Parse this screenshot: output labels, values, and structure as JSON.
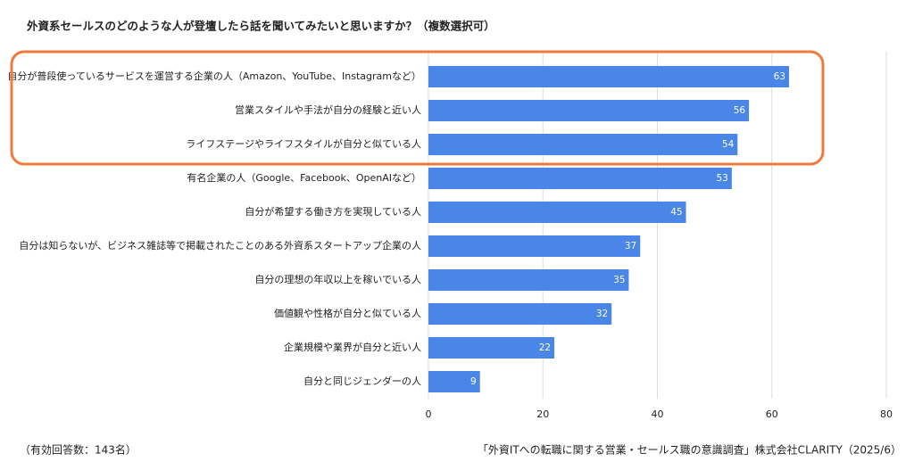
{
  "chart_data": {
    "type": "bar",
    "orientation": "horizontal",
    "title": "外資系セールスのどのような人が登壇したら話を聞いてみたいと思いますか？（複数選択可）",
    "categories": [
      "自分が普段使っているサービスを運営する企業の人（Amazon、YouTube、Instagramなど）",
      "営業スタイルや手法が自分の経験と近い人",
      "ライフステージやライフスタイルが自分と似ている人",
      "有名企業の人（Google、Facebook、OpenAIなど）",
      "自分が希望する働き方を実現している人",
      "自分は知らないが、ビジネス雑誌等で掲載されたことのある外資系スタートアップ企業の人",
      "自分の理想の年収以上を稼いでいる人",
      "価値観や性格が自分と似ている人",
      "企業規模や業界が自分と近い人",
      "自分と同じジェンダーの人"
    ],
    "values": [
      63,
      56,
      54,
      53,
      45,
      37,
      35,
      32,
      22,
      9
    ],
    "color": "#4a86e8",
    "xlim": [
      0,
      80
    ],
    "xticks": [
      0,
      20,
      40,
      60,
      80
    ],
    "grid": true,
    "footnote": "（有効回答数：143名）",
    "source": "「外資ITへの転職に関する営業・セールス職の意識調査」株式会社CLARITY（2025/6）"
  }
}
